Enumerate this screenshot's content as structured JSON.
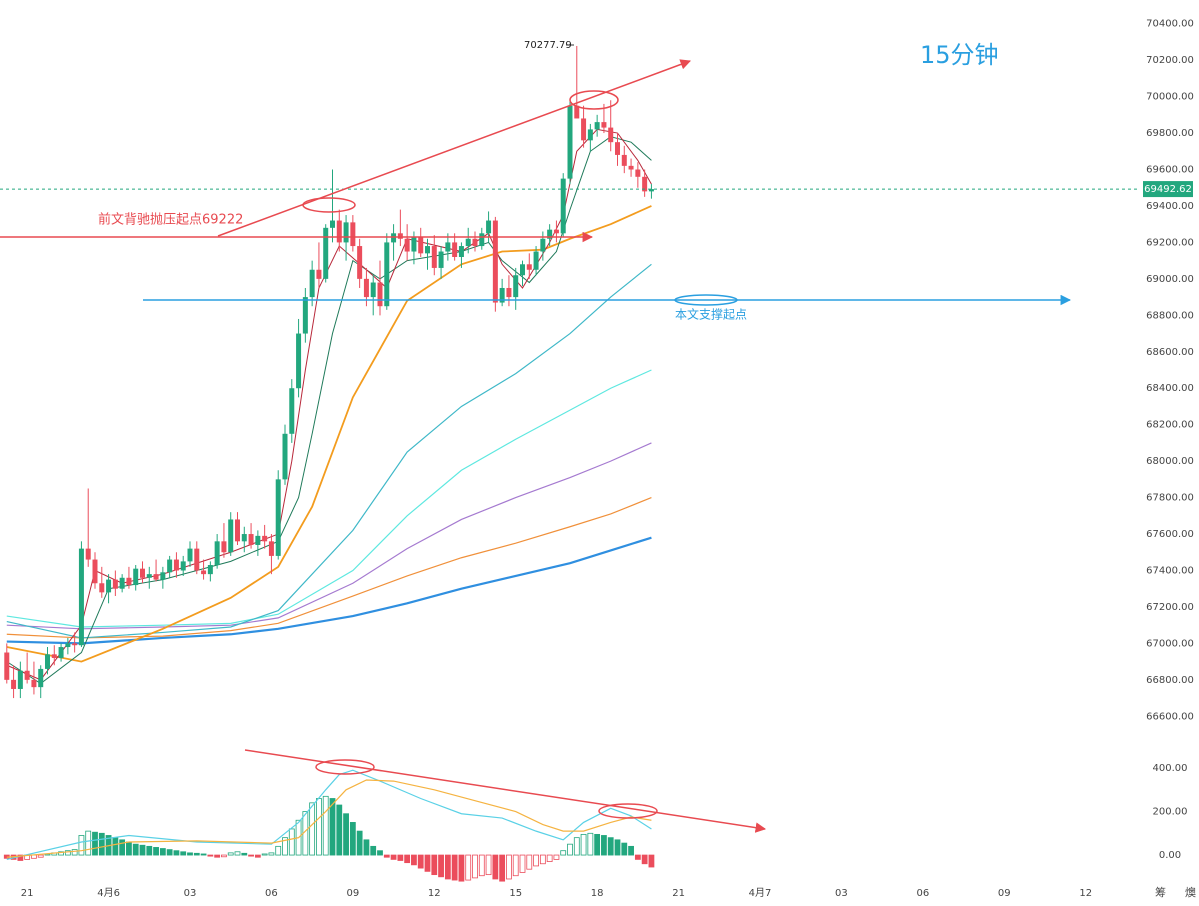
{
  "chart_data": {
    "type": "candlestick",
    "title": "15分钟",
    "up_color": "#22a77e",
    "down_color": "#eb4d5c",
    "xlim": [
      -4,
      164
    ],
    "xticks": [
      {
        "value": 0,
        "label": "21"
      },
      {
        "value": 12,
        "label": "4月6"
      },
      {
        "value": 24,
        "label": "03"
      },
      {
        "value": 36,
        "label": "06"
      },
      {
        "value": 48,
        "label": "09"
      },
      {
        "value": 60,
        "label": "12"
      },
      {
        "value": 72,
        "label": "15"
      },
      {
        "value": 84,
        "label": "18"
      },
      {
        "value": 96,
        "label": "21"
      },
      {
        "value": 108,
        "label": "4月7"
      },
      {
        "value": 120,
        "label": "03"
      },
      {
        "value": 132,
        "label": "06"
      },
      {
        "value": 144,
        "label": "09"
      },
      {
        "value": 156,
        "label": "12"
      }
    ],
    "ylim": [
      66470,
      70530
    ],
    "yticks": [
      {
        "value": 66600,
        "label": "66600.00"
      },
      {
        "value": 66800,
        "label": "66800.00"
      },
      {
        "value": 67000,
        "label": "67000.00"
      },
      {
        "value": 67200,
        "label": "67200.00"
      },
      {
        "value": 67400,
        "label": "67400.00"
      },
      {
        "value": 67600,
        "label": "67600.00"
      },
      {
        "value": 67800,
        "label": "67800.00"
      },
      {
        "value": 68000,
        "label": "68000.00"
      },
      {
        "value": 68200,
        "label": "68200.00"
      },
      {
        "value": 68400,
        "label": "68400.00"
      },
      {
        "value": 68600,
        "label": "68600.00"
      },
      {
        "value": 68800,
        "label": "68800.00"
      },
      {
        "value": 69000,
        "label": "69000.00"
      },
      {
        "value": 69200,
        "label": "69200.00"
      },
      {
        "value": 69400,
        "label": "69400.00"
      },
      {
        "value": 69600,
        "label": "69600.00"
      },
      {
        "value": 69800,
        "label": "69800.00"
      },
      {
        "value": 70000,
        "label": "70000.00"
      },
      {
        "value": 70200,
        "label": "70200.00"
      },
      {
        "value": 70400,
        "label": "70400.00"
      }
    ],
    "last_price": 69492.62,
    "high_label": 70277.79,
    "note_resistance": "前文背驰抛压起点69222",
    "note_support": "本文支撑起点",
    "corner_labels": [
      "筹",
      "燠"
    ],
    "x": [
      -3,
      -2,
      -1,
      0,
      1,
      2,
      3,
      4,
      5,
      6,
      7,
      8,
      9,
      10,
      11,
      12,
      13,
      14,
      15,
      16,
      17,
      18,
      19,
      20,
      21,
      22,
      23,
      24,
      25,
      26,
      27,
      28,
      29,
      30,
      31,
      32,
      33,
      34,
      35,
      36,
      37,
      38,
      39,
      40,
      41,
      42,
      43,
      44,
      45,
      46,
      47,
      48,
      49,
      50,
      51,
      52,
      53,
      54,
      55,
      56,
      57,
      58,
      59,
      60,
      61,
      62,
      63,
      64,
      65,
      66,
      67,
      68,
      69,
      70,
      71,
      72,
      73,
      74,
      75,
      76,
      77,
      78,
      79,
      80,
      81,
      82,
      83,
      84,
      85,
      86,
      87,
      88,
      89,
      90,
      91,
      92
    ],
    "ohlc": [
      [
        66950,
        67000,
        66780,
        66800
      ],
      [
        66800,
        66880,
        66700,
        66750
      ],
      [
        66750,
        66900,
        66700,
        66850
      ],
      [
        66850,
        66950,
        66780,
        66800
      ],
      [
        66800,
        66900,
        66720,
        66760
      ],
      [
        66760,
        66880,
        66700,
        66860
      ],
      [
        66860,
        66980,
        66830,
        66940
      ],
      [
        66940,
        66990,
        66880,
        66920
      ],
      [
        66920,
        67000,
        66900,
        66980
      ],
      [
        66980,
        67030,
        66940,
        67000
      ],
      [
        67000,
        67060,
        66950,
        66990
      ],
      [
        66990,
        67560,
        66980,
        67520
      ],
      [
        67520,
        67850,
        67420,
        67460
      ],
      [
        67460,
        67500,
        67300,
        67330
      ],
      [
        67330,
        67420,
        67250,
        67280
      ],
      [
        67280,
        67380,
        67220,
        67350
      ],
      [
        67350,
        67400,
        67260,
        67300
      ],
      [
        67300,
        67380,
        67280,
        67360
      ],
      [
        67360,
        67420,
        67300,
        67320
      ],
      [
        67320,
        67430,
        67290,
        67410
      ],
      [
        67410,
        67450,
        67330,
        67360
      ],
      [
        67360,
        67420,
        67300,
        67380
      ],
      [
        67380,
        67460,
        67340,
        67350
      ],
      [
        67350,
        67420,
        67300,
        67390
      ],
      [
        67390,
        67480,
        67360,
        67460
      ],
      [
        67460,
        67500,
        67360,
        67400
      ],
      [
        67400,
        67480,
        67370,
        67450
      ],
      [
        67450,
        67560,
        67420,
        67520
      ],
      [
        67520,
        67560,
        67380,
        67400
      ],
      [
        67400,
        67460,
        67350,
        67380
      ],
      [
        67380,
        67450,
        67340,
        67430
      ],
      [
        67430,
        67600,
        67410,
        67560
      ],
      [
        67560,
        67660,
        67470,
        67500
      ],
      [
        67500,
        67720,
        67480,
        67680
      ],
      [
        67680,
        67720,
        67540,
        67560
      ],
      [
        67560,
        67640,
        67500,
        67600
      ],
      [
        67600,
        67660,
        67520,
        67540
      ],
      [
        67540,
        67620,
        67480,
        67590
      ],
      [
        67590,
        67650,
        67520,
        67560
      ],
      [
        67560,
        67600,
        67380,
        67480
      ],
      [
        67480,
        67950,
        67460,
        67900
      ],
      [
        67900,
        68200,
        67870,
        68150
      ],
      [
        68150,
        68450,
        68100,
        68400
      ],
      [
        68400,
        68780,
        68350,
        68700
      ],
      [
        68700,
        68950,
        68650,
        68900
      ],
      [
        68900,
        69100,
        68850,
        69050
      ],
      [
        69050,
        69200,
        68950,
        69000
      ],
      [
        69000,
        69300,
        68980,
        69280
      ],
      [
        69280,
        69600,
        69200,
        69320
      ],
      [
        69320,
        69380,
        69150,
        69200
      ],
      [
        69200,
        69350,
        69100,
        69310
      ],
      [
        69310,
        69350,
        69150,
        69180
      ],
      [
        69180,
        69220,
        68950,
        69000
      ],
      [
        69000,
        69060,
        68850,
        68900
      ],
      [
        68900,
        69020,
        68800,
        68980
      ],
      [
        68980,
        69100,
        68800,
        68850
      ],
      [
        68850,
        69250,
        68830,
        69200
      ],
      [
        69200,
        69300,
        69100,
        69250
      ],
      [
        69250,
        69380,
        69180,
        69220
      ],
      [
        69220,
        69300,
        69100,
        69150
      ],
      [
        69150,
        69260,
        69080,
        69230
      ],
      [
        69230,
        69280,
        69120,
        69140
      ],
      [
        69140,
        69220,
        69050,
        69180
      ],
      [
        69180,
        69240,
        69020,
        69060
      ],
      [
        69060,
        69180,
        69000,
        69150
      ],
      [
        69150,
        69250,
        69100,
        69200
      ],
      [
        69200,
        69250,
        69100,
        69120
      ],
      [
        69120,
        69200,
        69060,
        69180
      ],
      [
        69180,
        69280,
        69140,
        69220
      ],
      [
        69220,
        69260,
        69150,
        69180
      ],
      [
        69180,
        69280,
        69160,
        69250
      ],
      [
        69250,
        69370,
        69200,
        69320
      ],
      [
        69320,
        69340,
        68820,
        68870
      ],
      [
        68870,
        69000,
        68850,
        68950
      ],
      [
        68950,
        69020,
        68850,
        68900
      ],
      [
        68900,
        69060,
        68830,
        69020
      ],
      [
        69020,
        69100,
        68960,
        69080
      ],
      [
        69080,
        69140,
        69000,
        69050
      ],
      [
        69050,
        69180,
        69020,
        69150
      ],
      [
        69150,
        69260,
        69100,
        69220
      ],
      [
        69220,
        69300,
        69180,
        69270
      ],
      [
        69270,
        69320,
        69200,
        69250
      ],
      [
        69250,
        69580,
        69230,
        69550
      ],
      [
        69550,
        69980,
        69520,
        69950
      ],
      [
        69950,
        70277.79,
        69900,
        69880
      ],
      [
        69880,
        69950,
        69720,
        69760
      ],
      [
        69760,
        69850,
        69700,
        69820
      ],
      [
        69820,
        69900,
        69780,
        69860
      ],
      [
        69860,
        69960,
        69800,
        69830
      ],
      [
        69830,
        69980,
        69700,
        69750
      ],
      [
        69750,
        69800,
        69620,
        69680
      ],
      [
        69680,
        69730,
        69580,
        69620
      ],
      [
        69620,
        69660,
        69560,
        69600
      ],
      [
        69600,
        69640,
        69500,
        69560
      ],
      [
        69560,
        69600,
        69450,
        69480
      ],
      [
        69480,
        69520,
        69440,
        69492.62
      ]
    ],
    "lines": [
      {
        "color": "#2f8fe0",
        "width": 2.2,
        "x": [
          -3,
          8,
          20,
          30,
          37,
          48,
          56,
          64,
          72,
          80,
          86,
          92
        ],
        "values": [
          67010,
          67000,
          67030,
          67050,
          67080,
          67150,
          67220,
          67300,
          67370,
          67440,
          67510,
          67580
        ]
      },
      {
        "color": "#f0903a",
        "width": 1.2,
        "x": [
          -3,
          8,
          20,
          30,
          37,
          48,
          56,
          64,
          72,
          80,
          86,
          92
        ],
        "values": [
          67050,
          67030,
          67040,
          67070,
          67110,
          67260,
          67370,
          67470,
          67550,
          67640,
          67710,
          67800
        ]
      },
      {
        "color": "#a57ad0",
        "width": 1.2,
        "x": [
          -3,
          8,
          20,
          30,
          37,
          48,
          56,
          64,
          72,
          80,
          86,
          92
        ],
        "values": [
          67100,
          67080,
          67090,
          67100,
          67140,
          67330,
          67520,
          67680,
          67800,
          67910,
          68000,
          68100
        ]
      },
      {
        "color": "#5ee8e0",
        "width": 1.2,
        "x": [
          -3,
          8,
          20,
          30,
          37,
          48,
          56,
          64,
          72,
          80,
          86,
          92
        ],
        "values": [
          67150,
          67090,
          67100,
          67110,
          67160,
          67400,
          67700,
          67950,
          68120,
          68280,
          68400,
          68500
        ]
      },
      {
        "color": "#3fb8c8",
        "width": 1.2,
        "x": [
          -3,
          8,
          20,
          30,
          37,
          48,
          56,
          64,
          72,
          80,
          86,
          92
        ],
        "values": [
          67120,
          67030,
          67060,
          67090,
          67180,
          67620,
          68050,
          68300,
          68480,
          68700,
          68900,
          69080
        ]
      },
      {
        "color": "#f39c1e",
        "width": 1.8,
        "x": [
          -3,
          8,
          20,
          30,
          37,
          42,
          48,
          56,
          64,
          70,
          76,
          80,
          86,
          92
        ],
        "values": [
          66980,
          66900,
          67080,
          67250,
          67420,
          67750,
          68350,
          68880,
          69080,
          69150,
          69160,
          69220,
          69300,
          69400
        ]
      },
      {
        "color": "#1f7a5a",
        "width": 1,
        "x": [
          -3,
          2,
          8,
          12,
          20,
          30,
          37,
          40,
          42,
          45,
          48,
          52,
          56,
          64,
          68,
          70,
          74,
          78,
          80,
          83,
          86,
          89,
          92
        ],
        "values": [
          66900,
          66780,
          66950,
          67300,
          67350,
          67450,
          67560,
          67800,
          68150,
          68700,
          69100,
          69000,
          69100,
          69150,
          69200,
          69100,
          68980,
          69150,
          69380,
          69700,
          69780,
          69750,
          69650
        ]
      },
      {
        "color": "#b8283a",
        "width": 1,
        "x": [
          -3,
          2,
          8,
          10,
          14,
          20,
          30,
          37,
          39,
          41,
          43,
          46,
          50,
          53,
          56,
          64,
          68,
          70,
          73,
          77,
          79,
          81,
          84,
          87,
          90,
          92
        ],
        "values": [
          66880,
          66800,
          67100,
          67400,
          67330,
          67380,
          67500,
          67600,
          68000,
          68500,
          68950,
          69180,
          69050,
          68950,
          69220,
          69150,
          69250,
          69080,
          68950,
          69200,
          69350,
          69700,
          69820,
          69800,
          69650,
          69520
        ]
      }
    ],
    "macd": {
      "ylim": [
        -140,
        460
      ],
      "yticks": [
        {
          "value": 0,
          "label": "0.00"
        },
        {
          "value": 200,
          "label": "200.00"
        },
        {
          "value": 400,
          "label": "400.00"
        }
      ],
      "histogram": [
        -15,
        -20,
        -25,
        -20,
        -15,
        -10,
        5,
        10,
        15,
        20,
        25,
        90,
        110,
        105,
        100,
        90,
        80,
        70,
        60,
        50,
        45,
        40,
        35,
        30,
        25,
        20,
        15,
        10,
        8,
        5,
        -5,
        -10,
        -8,
        10,
        15,
        8,
        -5,
        -10,
        5,
        10,
        40,
        80,
        120,
        160,
        200,
        240,
        260,
        270,
        260,
        230,
        190,
        150,
        110,
        70,
        40,
        20,
        -10,
        -20,
        -25,
        -35,
        -45,
        -60,
        -75,
        -90,
        -100,
        -110,
        -115,
        -120,
        -115,
        -105,
        -95,
        -90,
        -110,
        -120,
        -110,
        -95,
        -80,
        -65,
        -50,
        -40,
        -30,
        -20,
        20,
        50,
        80,
        95,
        100,
        95,
        90,
        80,
        70,
        55,
        40,
        -20,
        -40,
        -55
      ],
      "lines": [
        {
          "color": "#5ad1e6",
          "x": [
            -3,
            8,
            15,
            25,
            36,
            40,
            44,
            46,
            48,
            52,
            58,
            64,
            70,
            75,
            79,
            82,
            86,
            89,
            92
          ],
          "values": [
            -20,
            60,
            90,
            60,
            50,
            150,
            300,
            370,
            390,
            340,
            260,
            190,
            170,
            110,
            70,
            150,
            215,
            180,
            120
          ]
        },
        {
          "color": "#f5b341",
          "x": [
            -3,
            8,
            15,
            25,
            36,
            40,
            44,
            47,
            50,
            54,
            60,
            66,
            72,
            76,
            79,
            82,
            86,
            89,
            92
          ],
          "values": [
            -10,
            20,
            60,
            65,
            55,
            80,
            200,
            300,
            345,
            340,
            300,
            250,
            200,
            140,
            110,
            110,
            150,
            175,
            160
          ]
        }
      ]
    }
  }
}
